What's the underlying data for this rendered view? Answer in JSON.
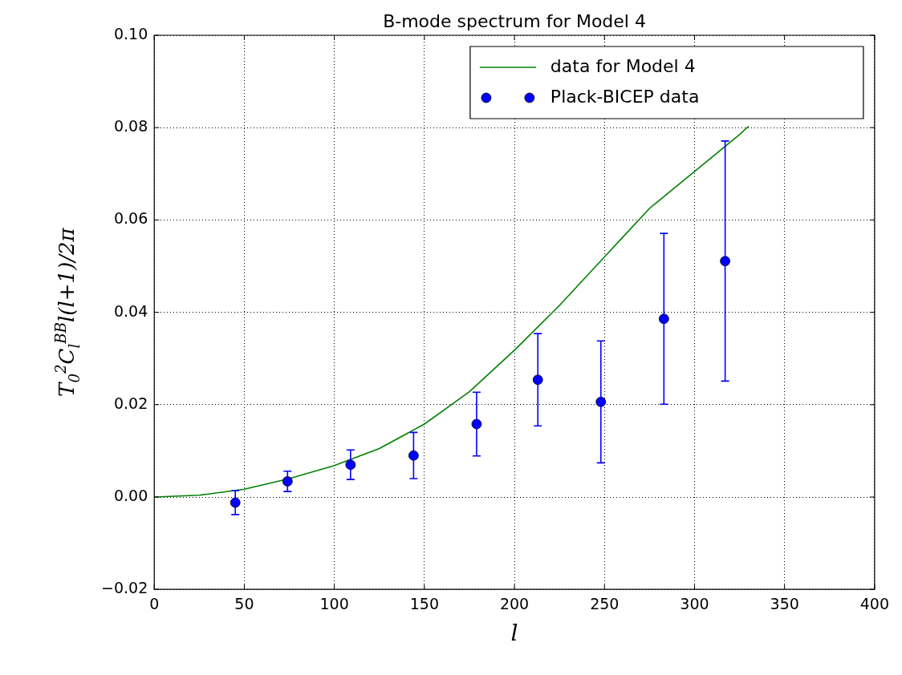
{
  "chart_data": {
    "type": "scatter",
    "title": "B-mode spectrum for Model 4",
    "xlabel": "l",
    "ylabel": "T$_{0}$$^{2}$C$_{l}$$^{BB}$l(l+1)/2π",
    "xlim": [
      0,
      400
    ],
    "xticks": [
      0,
      50,
      100,
      150,
      200,
      250,
      300,
      350,
      400
    ],
    "ylim": [
      -0.02,
      0.1
    ],
    "yticks": [
      {
        "value": -0.02,
        "label": "−0.02"
      },
      {
        "value": 0,
        "label": "0.00"
      },
      {
        "value": 0.02,
        "label": "0.02"
      },
      {
        "value": 0.04,
        "label": "0.04"
      },
      {
        "value": 0.06,
        "label": "0.06"
      },
      {
        "value": 0.08,
        "label": "0.08"
      },
      {
        "value": 0.1,
        "label": "0.10"
      }
    ],
    "grid": true,
    "legend": "top right",
    "series": [
      {
        "name": "data for Model 4",
        "type": "line",
        "color": "#008000",
        "marker": "none",
        "line_style": "solid",
        "x": [
          0,
          25,
          50,
          75,
          100,
          125,
          150,
          175,
          200,
          225,
          250,
          275,
          300,
          325,
          330
        ],
        "values": [
          0,
          0.0004,
          0.0017,
          0.004,
          0.0068,
          0.0105,
          0.0158,
          0.0228,
          0.0318,
          0.0415,
          0.052,
          0.0625,
          0.0705,
          0.0785,
          0.0803
        ]
      },
      {
        "name": "Plack-BICEP data",
        "type": "scatter",
        "color": "#0000ff",
        "marker": "circle",
        "x": [
          45,
          74,
          109,
          144,
          179,
          213,
          248,
          283,
          317
        ],
        "values": [
          -0.0012,
          0.0034,
          0.007,
          0.009,
          0.0158,
          0.0254,
          0.0206,
          0.0386,
          0.0511
        ],
        "errors": [
          0.0026,
          0.0022,
          0.0032,
          0.005,
          0.0069,
          0.01,
          0.0132,
          0.0185,
          0.026
        ]
      }
    ]
  }
}
